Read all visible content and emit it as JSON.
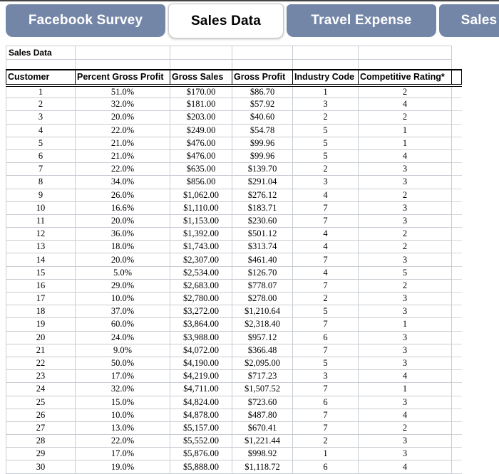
{
  "tabs": [
    {
      "label": "Facebook Survey",
      "active": false
    },
    {
      "label": "Sales Data",
      "active": true
    },
    {
      "label": "Travel Expense",
      "active": false
    },
    {
      "label": "Sales",
      "active": false
    }
  ],
  "sheet": {
    "label_cell": "Sales Data",
    "columns": [
      "Customer",
      "Percent Gross Profit",
      "Gross Sales",
      "Gross Profit",
      "Industry Code",
      "Competitive Rating*"
    ],
    "rows": [
      [
        "1",
        "51.0%",
        "$170.00",
        "$86.70",
        "1",
        "2"
      ],
      [
        "2",
        "32.0%",
        "$181.00",
        "$57.92",
        "3",
        "4"
      ],
      [
        "3",
        "20.0%",
        "$203.00",
        "$40.60",
        "2",
        "2"
      ],
      [
        "4",
        "22.0%",
        "$249.00",
        "$54.78",
        "5",
        "1"
      ],
      [
        "5",
        "21.0%",
        "$476.00",
        "$99.96",
        "5",
        "1"
      ],
      [
        "6",
        "21.0%",
        "$476.00",
        "$99.96",
        "5",
        "4"
      ],
      [
        "7",
        "22.0%",
        "$635.00",
        "$139.70",
        "2",
        "3"
      ],
      [
        "8",
        "34.0%",
        "$856.00",
        "$291.04",
        "3",
        "3"
      ],
      [
        "9",
        "26.0%",
        "$1,062.00",
        "$276.12",
        "4",
        "2"
      ],
      [
        "10",
        "16.6%",
        "$1,110.00",
        "$183.71",
        "7",
        "3"
      ],
      [
        "11",
        "20.0%",
        "$1,153.00",
        "$230.60",
        "7",
        "3"
      ],
      [
        "12",
        "36.0%",
        "$1,392.00",
        "$501.12",
        "4",
        "2"
      ],
      [
        "13",
        "18.0%",
        "$1,743.00",
        "$313.74",
        "4",
        "2"
      ],
      [
        "14",
        "20.0%",
        "$2,307.00",
        "$461.40",
        "7",
        "3"
      ],
      [
        "15",
        "5.0%",
        "$2,534.00",
        "$126.70",
        "4",
        "5"
      ],
      [
        "16",
        "29.0%",
        "$2,683.00",
        "$778.07",
        "7",
        "2"
      ],
      [
        "17",
        "10.0%",
        "$2,780.00",
        "$278.00",
        "2",
        "3"
      ],
      [
        "18",
        "37.0%",
        "$3,272.00",
        "$1,210.64",
        "5",
        "3"
      ],
      [
        "19",
        "60.0%",
        "$3,864.00",
        "$2,318.40",
        "7",
        "1"
      ],
      [
        "20",
        "24.0%",
        "$3,988.00",
        "$957.12",
        "6",
        "3"
      ],
      [
        "21",
        "9.0%",
        "$4,072.00",
        "$366.48",
        "7",
        "3"
      ],
      [
        "22",
        "50.0%",
        "$4,190.00",
        "$2,095.00",
        "5",
        "3"
      ],
      [
        "23",
        "17.0%",
        "$4,219.00",
        "$717.23",
        "3",
        "4"
      ],
      [
        "24",
        "32.0%",
        "$4,711.00",
        "$1,507.52",
        "7",
        "1"
      ],
      [
        "25",
        "15.0%",
        "$4,824.00",
        "$723.60",
        "6",
        "3"
      ],
      [
        "26",
        "10.0%",
        "$4,878.00",
        "$487.80",
        "7",
        "4"
      ],
      [
        "27",
        "13.0%",
        "$5,157.00",
        "$670.41",
        "7",
        "2"
      ],
      [
        "28",
        "22.0%",
        "$5,552.00",
        "$1,221.44",
        "2",
        "3"
      ],
      [
        "29",
        "17.0%",
        "$5,876.00",
        "$998.92",
        "1",
        "3"
      ],
      [
        "30",
        "19.0%",
        "$5,888.00",
        "$1,118.72",
        "6",
        "4"
      ]
    ]
  },
  "colors": {
    "tab_inactive_bg": "#7486a8",
    "tab_inactive_text": "#ffffff",
    "tab_active_bg": "#ffffff",
    "tab_active_text": "#000000",
    "top_line": "#454545",
    "gridline": "#c8ccd3",
    "header_border": "#000000"
  }
}
